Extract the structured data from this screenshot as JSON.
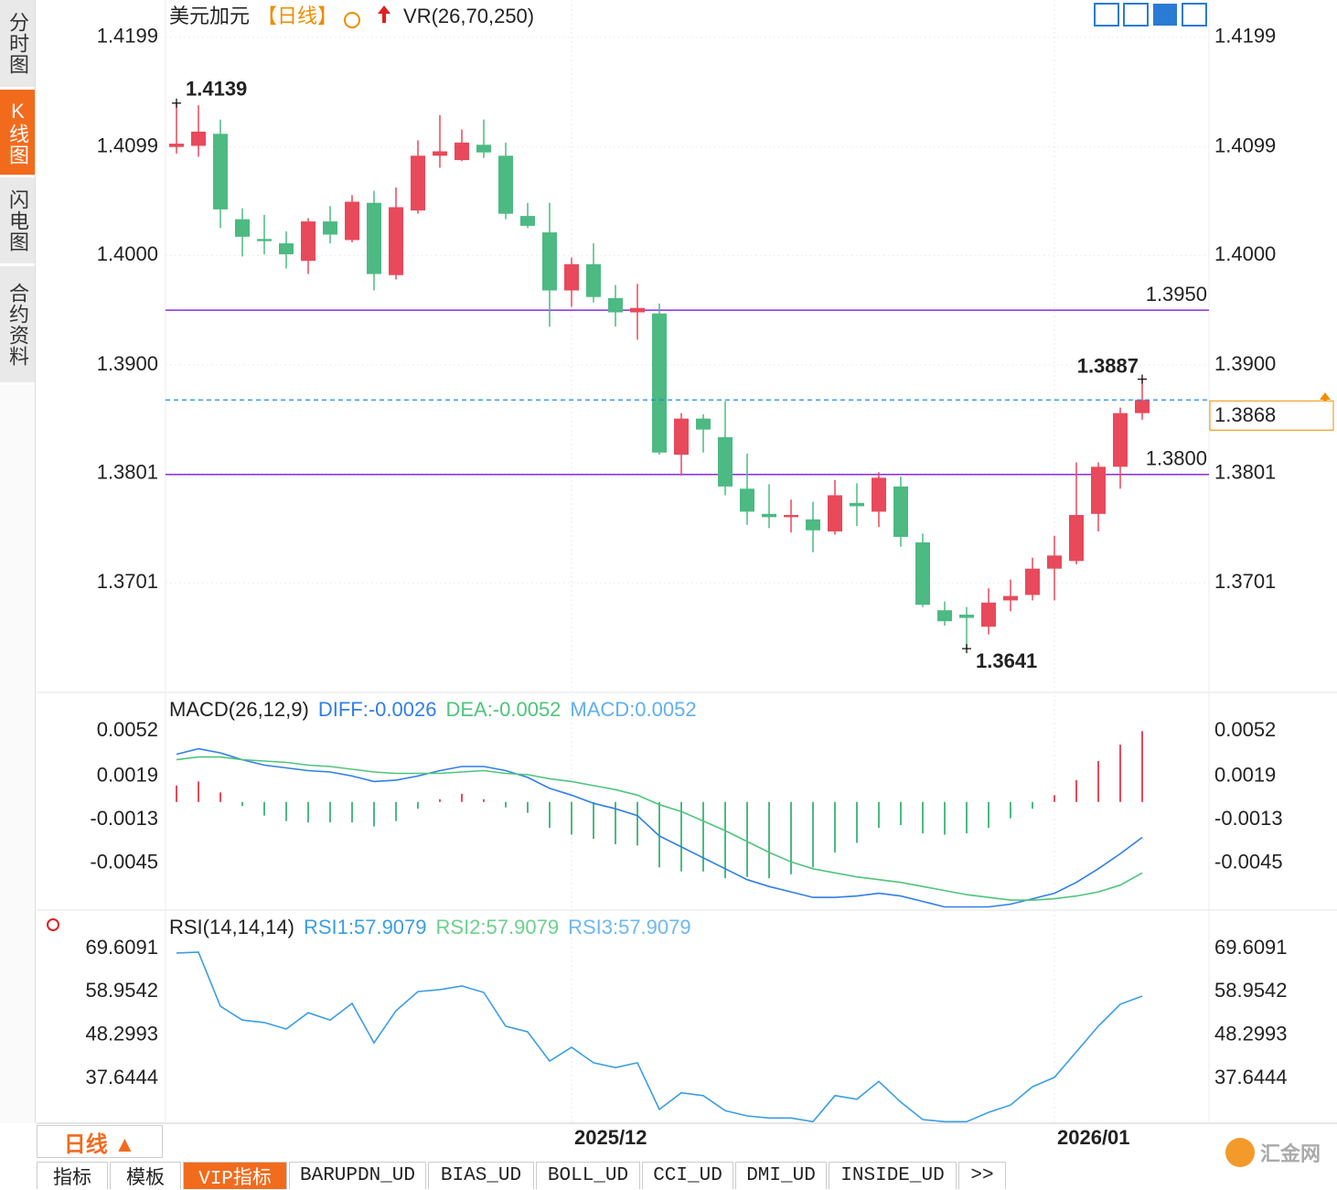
{
  "sidebar": [
    {
      "label": "分时图"
    },
    {
      "label": "K线图",
      "active": true
    },
    {
      "label": "闪电图"
    },
    {
      "label": "合约资料"
    }
  ],
  "period_button": "日线 ▲",
  "tabs": [
    {
      "label": "指标"
    },
    {
      "label": "模板"
    },
    {
      "label": "VIP指标",
      "active": true
    },
    {
      "label": "BARUPDN_UD"
    },
    {
      "label": "BIAS_UD"
    },
    {
      "label": "BOLL_UD"
    },
    {
      "label": "CCI_UD"
    },
    {
      "label": "DMI_UD"
    },
    {
      "label": "INSIDE_UD"
    },
    {
      "label": ">>"
    }
  ],
  "logo": "汇金网",
  "chart_data": [
    {
      "type": "candlestick",
      "title": "美元加元",
      "period": "【日线】",
      "indicator": "VR(26,70,250)",
      "categories": [
        null,
        null,
        null,
        null,
        null,
        null,
        null,
        null,
        null,
        null,
        null,
        null,
        null,
        null,
        null,
        null,
        null,
        null,
        "2025/12",
        null,
        null,
        null,
        null,
        null,
        null,
        null,
        null,
        null,
        null,
        null,
        null,
        null,
        null,
        null,
        null,
        null,
        null,
        null,
        null,
        null,
        "2026/01",
        null,
        null,
        null,
        null
      ],
      "open": [
        1.4099,
        1.41,
        1.4111,
        1.4033,
        1.4015,
        1.4011,
        1.3995,
        1.4031,
        1.4014,
        1.4048,
        1.3982,
        1.4041,
        1.4091,
        1.4087,
        1.4101,
        1.4091,
        1.4036,
        1.4021,
        1.3968,
        1.3992,
        1.3961,
        1.3948,
        1.3947,
        1.3818,
        1.3851,
        1.3834,
        1.3787,
        1.3764,
        1.3761,
        1.3759,
        1.3748,
        1.3774,
        1.3766,
        1.3789,
        1.3738,
        1.3676,
        1.3672,
        1.3661,
        1.3685,
        1.369,
        1.3714,
        1.3721,
        1.3764,
        1.3807,
        1.3856
      ],
      "high": [
        1.4139,
        1.4137,
        1.4124,
        1.4043,
        1.4037,
        1.4022,
        1.4034,
        1.4045,
        1.4055,
        1.4059,
        1.4062,
        1.4105,
        1.4128,
        1.4115,
        1.4124,
        1.4103,
        1.4048,
        1.4048,
        1.3998,
        1.4011,
        1.3973,
        1.3974,
        1.3956,
        1.3856,
        1.3855,
        1.3867,
        1.3819,
        1.3791,
        1.3777,
        1.3775,
        1.3795,
        1.3792,
        1.3802,
        1.3798,
        1.3746,
        1.3684,
        1.3679,
        1.3696,
        1.3704,
        1.3724,
        1.3744,
        1.3811,
        1.3811,
        1.3861,
        1.3887
      ],
      "low": [
        1.4093,
        1.409,
        1.4025,
        1.3999,
        1.4001,
        1.3988,
        1.3983,
        1.4011,
        1.4012,
        1.3968,
        1.3978,
        1.4038,
        1.408,
        1.4086,
        1.4089,
        1.4033,
        1.4025,
        1.3935,
        1.3953,
        1.3957,
        1.3935,
        1.3923,
        1.3818,
        1.3799,
        1.382,
        1.3781,
        1.3754,
        1.3751,
        1.3747,
        1.3729,
        1.3745,
        1.3753,
        1.3752,
        1.3734,
        1.3679,
        1.3662,
        1.3641,
        1.3654,
        1.3675,
        1.3685,
        1.3685,
        1.3718,
        1.3748,
        1.3787,
        1.385
      ],
      "close": [
        1.4102,
        1.4113,
        1.4042,
        1.4017,
        1.4013,
        1.4001,
        1.4031,
        1.4019,
        1.4049,
        1.3983,
        1.4044,
        1.4091,
        1.4095,
        1.4103,
        1.4094,
        1.4038,
        1.4027,
        1.3968,
        1.3992,
        1.3962,
        1.3948,
        1.3952,
        1.382,
        1.3851,
        1.3841,
        1.3789,
        1.3766,
        1.3761,
        1.3763,
        1.3749,
        1.3781,
        1.3771,
        1.3797,
        1.3743,
        1.3681,
        1.3666,
        1.3669,
        1.3683,
        1.3689,
        1.3714,
        1.3726,
        1.3763,
        1.3807,
        1.3856,
        1.3868
      ],
      "up_color": "#e8495b",
      "down_color": "#4cba82",
      "ylim": [
        1.3601,
        1.4229
      ],
      "yticks": [
        1.4199,
        1.4099,
        {
          "value": 1.4,
          "label": "1.4000"
        },
        {
          "value": 1.39,
          "label": "1.3900"
        },
        1.3801,
        1.3701
      ],
      "grid": true,
      "hlines": [
        {
          "value": 1.395,
          "label": "1.3950"
        },
        {
          "value": 1.38,
          "label": "1.3800"
        }
      ],
      "hline_color": "#8a2be2",
      "last_price": 1.3868,
      "last_price_color": "#1e88e5",
      "last_label_color": "#f08c00"
    },
    {
      "type": "macd",
      "title": "MACD(26,12,9)",
      "series": [
        {
          "legend": "DIFF:-0.0026",
          "color": "#2f7fe6",
          "kind": "line",
          "values": [
            0.0035,
            0.0039,
            0.0036,
            0.0031,
            0.0027,
            0.0025,
            0.0023,
            0.0022,
            0.0019,
            0.0015,
            0.0016,
            0.0019,
            0.0023,
            0.0026,
            0.0026,
            0.0023,
            0.0018,
            0.001,
            0.0005,
            -0.0001,
            -0.0005,
            -0.001,
            -0.0025,
            -0.0033,
            -0.0041,
            -0.0049,
            -0.0057,
            -0.0062,
            -0.0066,
            -0.007,
            -0.007,
            -0.0069,
            -0.0067,
            -0.0069,
            -0.0073,
            -0.0077,
            -0.0077,
            -0.0077,
            -0.0075,
            -0.0071,
            -0.0067,
            -0.0059,
            -0.0049,
            -0.0038,
            -0.0026
          ]
        },
        {
          "legend": "DEA:-0.0052",
          "color": "#4fc47c",
          "kind": "line",
          "values": [
            0.0031,
            0.0033,
            0.0033,
            0.0031,
            0.003,
            0.0029,
            0.0027,
            0.0026,
            0.0024,
            0.0022,
            0.0021,
            0.0021,
            0.0021,
            0.0022,
            0.0023,
            0.0021,
            0.002,
            0.0017,
            0.0015,
            0.0012,
            0.0009,
            0.0005,
            -0.0002,
            -0.0007,
            -0.0014,
            -0.0021,
            -0.0029,
            -0.0037,
            -0.0044,
            -0.0049,
            -0.0052,
            -0.0055,
            -0.0057,
            -0.0059,
            -0.0062,
            -0.0065,
            -0.0068,
            -0.007,
            -0.0072,
            -0.0072,
            -0.0071,
            -0.0069,
            -0.0066,
            -0.0061,
            -0.0052
          ]
        },
        {
          "legend": "MACD:0.0052",
          "color": "#5fb0ef",
          "kind": "histogram",
          "up_color": "#e8495b",
          "down_color": "#4cba82",
          "values": [
            0.0012,
            0.0015,
            0.0007,
            -0.0003,
            -0.001,
            -0.0014,
            -0.0015,
            -0.0015,
            -0.0015,
            -0.0018,
            -0.0014,
            -0.0005,
            0.0002,
            0.0006,
            0.0002,
            -0.0004,
            -0.0008,
            -0.0019,
            -0.0024,
            -0.0027,
            -0.0031,
            -0.0032,
            -0.0048,
            -0.0051,
            -0.0051,
            -0.0056,
            -0.0055,
            -0.0056,
            -0.0053,
            -0.0048,
            -0.0037,
            -0.003,
            -0.0019,
            -0.0017,
            -0.0023,
            -0.0024,
            -0.0023,
            -0.0019,
            -0.0012,
            -0.0005,
            0.0005,
            0.0016,
            0.003,
            0.0042,
            0.0052
          ]
        }
      ],
      "ylim": [
        -0.0078,
        0.0077
      ],
      "yticks": [
        0.0052,
        0.0019,
        -0.0013,
        -0.0045
      ]
    },
    {
      "type": "rsi",
      "title": "RSI(14,14,14)",
      "series": [
        {
          "legend": "RSI1:57.9079",
          "color": "#3a9ee4",
          "values": [
            68.5,
            68.7,
            55.4,
            52.0,
            51.4,
            49.8,
            53.8,
            52.0,
            56.1,
            46.4,
            54.3,
            59.0,
            59.5,
            60.4,
            58.8,
            50.5,
            49.1,
            41.9,
            45.3,
            41.5,
            40.3,
            41.5,
            30.0,
            34.1,
            33.4,
            29.7,
            28.4,
            27.9,
            27.9,
            27.0,
            33.4,
            32.5,
            36.9,
            31.8,
            27.5,
            27.0,
            27.0,
            29.3,
            31.1,
            35.6,
            37.9,
            44.2,
            50.5,
            55.9,
            57.9079
          ]
        },
        {
          "legend": "RSI2:57.9079",
          "color": "#6cd08c"
        },
        {
          "legend": "RSI3:57.9079",
          "color": "#6cb8f0"
        }
      ],
      "ylim": [
        26.61,
        78.39
      ],
      "yticks": [
        69.6091,
        58.9542,
        48.2993,
        37.6444
      ]
    }
  ]
}
